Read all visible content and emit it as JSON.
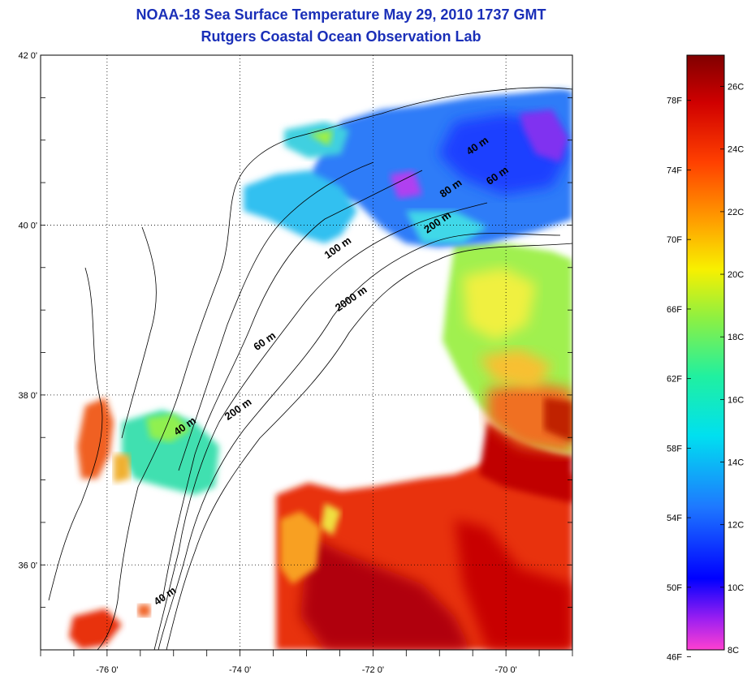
{
  "header": {
    "title_line1": "NOAA-18 Sea Surface Temperature May 29, 2010 1737 GMT",
    "title_line2": "Rutgers Coastal Ocean Observation Lab"
  },
  "map": {
    "lat_ticks": [
      "42 0'",
      "40 0'",
      "38 0'",
      "36 0'"
    ],
    "lon_ticks": [
      "-76 0'",
      "-74 0'",
      "-72 0'",
      "-70 0'"
    ],
    "lat_range": [
      35.0,
      42.0
    ],
    "lon_range": [
      -77.0,
      -69.0
    ],
    "grid": "dotted",
    "isobath_labels": [
      {
        "text": "40 m",
        "lon": -70.4,
        "lat": 40.9
      },
      {
        "text": "60 m",
        "lon": -70.1,
        "lat": 40.55
      },
      {
        "text": "80 m",
        "lon": -70.8,
        "lat": 40.4
      },
      {
        "text": "200 m",
        "lon": -71.0,
        "lat": 40.0
      },
      {
        "text": "100 m",
        "lon": -72.5,
        "lat": 39.7
      },
      {
        "text": "2000 m",
        "lon": -72.3,
        "lat": 39.1
      },
      {
        "text": "60 m",
        "lon": -73.6,
        "lat": 38.6
      },
      {
        "text": "200 m",
        "lon": -74.0,
        "lat": 37.8
      },
      {
        "text": "40 m",
        "lon": -74.8,
        "lat": 37.6
      },
      {
        "text": "40 m",
        "lon": -75.1,
        "lat": 35.6
      }
    ]
  },
  "colorbar": {
    "f_labels": [
      "78F",
      "74F",
      "70F",
      "66F",
      "62F",
      "58F",
      "54F",
      "50F",
      "46F"
    ],
    "c_labels": [
      "26C",
      "24C",
      "22C",
      "20C",
      "18C",
      "16C",
      "14C",
      "12C",
      "10C",
      "8C"
    ],
    "c_range": [
      8,
      27
    ],
    "colors": [
      "#ff40d0",
      "#a020f0",
      "#0000ff",
      "#1e78ff",
      "#00e0f0",
      "#20f0a0",
      "#90f040",
      "#f8f000",
      "#ffa000",
      "#ff4000",
      "#d00000",
      "#800000"
    ]
  }
}
